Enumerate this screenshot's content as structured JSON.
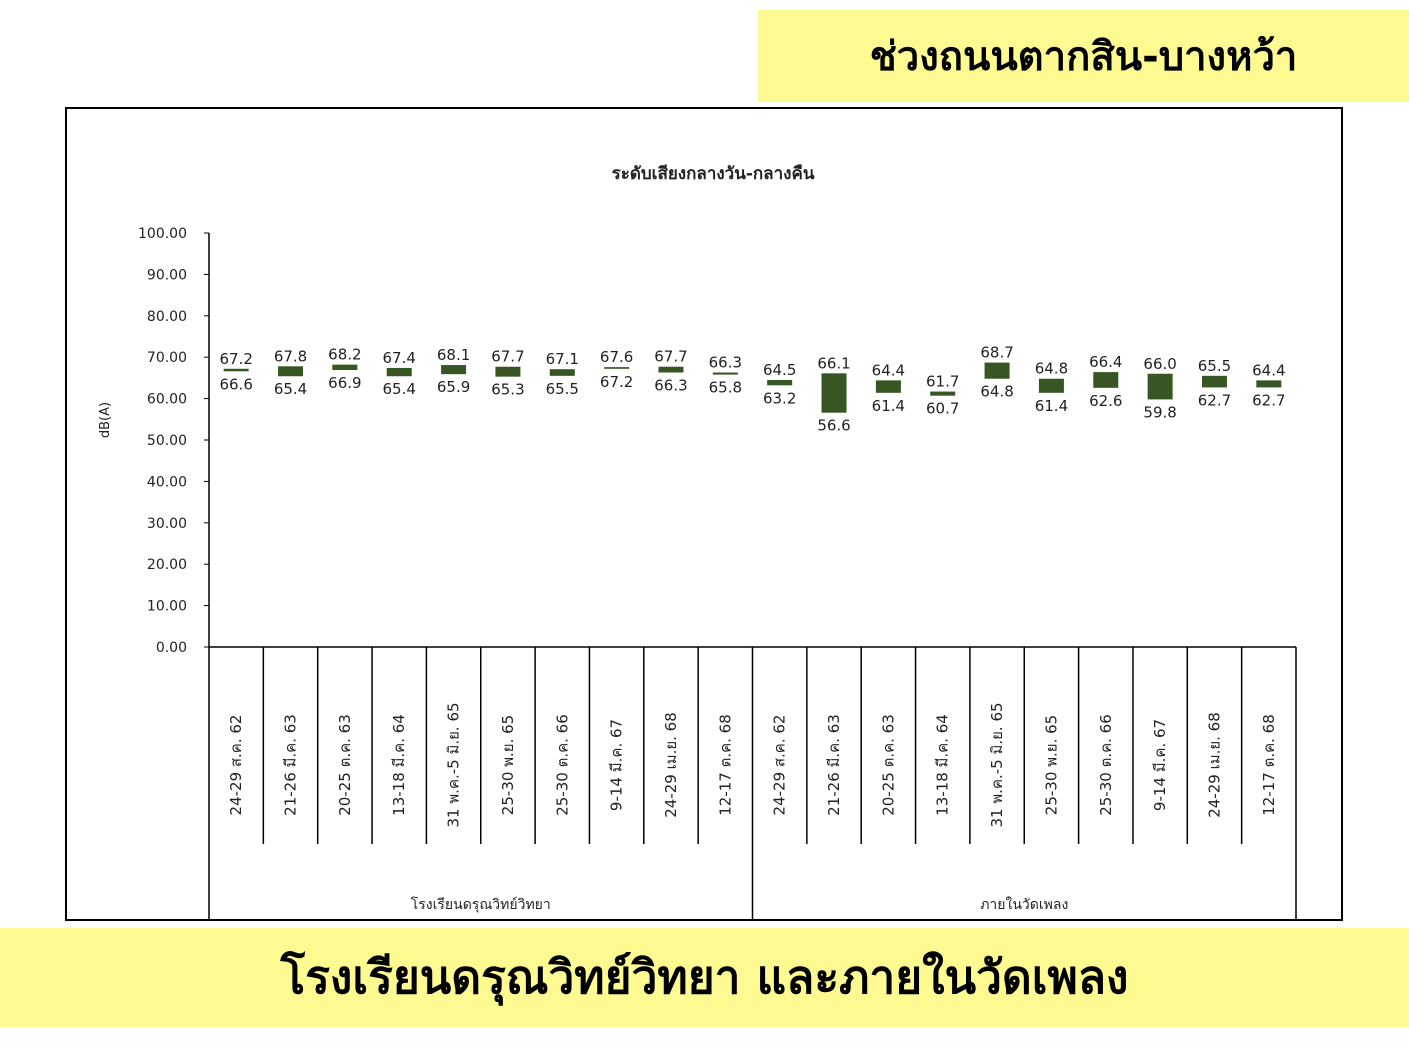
{
  "header": {
    "section_title": "ช่วงถนนตากสิน-บางหว้า"
  },
  "footer": {
    "caption": "โรงเรียนดรุณวิทย์วิทยา และภายในวัดเพลง"
  },
  "colors": {
    "bar_fill": "#375623",
    "banner": "#fdfa91",
    "axis": "#000000"
  },
  "chart_data": {
    "type": "bar",
    "subtype": "floating-range",
    "title": "ระดับเสียงกลางวัน-กลางคืน",
    "xlabel": "",
    "ylabel": "dB(A)",
    "ylim": [
      0,
      100
    ],
    "yticks": [
      "0.00",
      "10.00",
      "20.00",
      "30.00",
      "40.00",
      "50.00",
      "60.00",
      "70.00",
      "80.00",
      "90.00",
      "100.00"
    ],
    "grid": false,
    "legend": "none",
    "groups": [
      "โรงเรียนดรุณวิทย์วิทยา",
      "ภายในวัดเพลง"
    ],
    "categories": [
      "24-29 ส.ค. 62",
      "21-26 มี.ค. 63",
      "20-25 ต.ค. 63",
      "13-18 มี.ค. 64",
      "31 พ.ค.-5 มิ.ย. 65",
      "25-30 พ.ย. 65",
      "25-30 ต.ค. 66",
      "9-14 มี.ค. 67",
      "24-29 เม.ย. 68",
      "12-17 ต.ค. 68",
      "24-29 ส.ค. 62",
      "21-26 มี.ค. 63",
      "20-25 ต.ค. 63",
      "13-18 มี.ค. 64",
      "31 พ.ค.-5 มิ.ย. 65",
      "25-30 พ.ย. 65",
      "25-30 ต.ค. 66",
      "9-14 มี.ค. 67",
      "24-29 เม.ย. 68",
      "12-17 ต.ค. 68"
    ],
    "category_group": [
      0,
      0,
      0,
      0,
      0,
      0,
      0,
      0,
      0,
      0,
      1,
      1,
      1,
      1,
      1,
      1,
      1,
      1,
      1,
      1
    ],
    "series": [
      {
        "values": [
          67.2,
          67.8,
          68.2,
          67.4,
          68.1,
          67.7,
          67.1,
          67.6,
          67.7,
          66.3,
          64.5,
          66.1,
          64.4,
          61.7,
          68.7,
          64.8,
          66.4,
          66.0,
          65.5,
          64.4
        ]
      },
      {
        "values": [
          66.6,
          65.4,
          66.9,
          65.4,
          65.9,
          65.3,
          65.5,
          67.2,
          66.3,
          65.8,
          63.2,
          56.6,
          61.4,
          60.7,
          64.8,
          61.4,
          62.6,
          59.8,
          62.7,
          62.7
        ]
      }
    ],
    "high_labels": [
      "67.2",
      "67.8",
      "68.2",
      "67.4",
      "68.1",
      "67.7",
      "67.1",
      "67.6",
      "67.7",
      "66.3",
      "64.5",
      "66.1",
      "64.4",
      "61.7",
      "68.7",
      "64.8",
      "66.4",
      "66.0",
      "65.5",
      "64.4"
    ],
    "low_labels": [
      "66.6",
      "65.4",
      "66.9",
      "65.4",
      "65.9",
      "65.3",
      "65.5",
      "67.2",
      "66.3",
      "65.8",
      "63.2",
      "56.6",
      "61.4",
      "60.7",
      "64.8",
      "61.4",
      "62.6",
      "59.8",
      "62.7",
      "62.7"
    ]
  }
}
